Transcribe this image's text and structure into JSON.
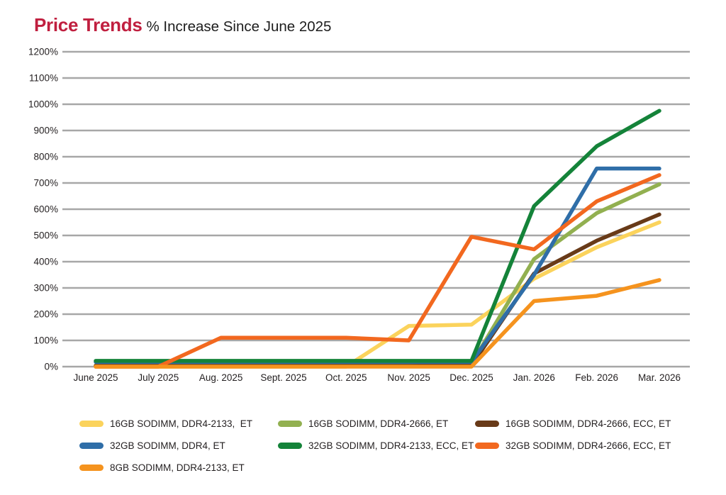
{
  "header": {
    "title": "Price Trends",
    "subtitle": "% Increase Since June 2025"
  },
  "colors": {
    "title_accent": "#C01F3F",
    "text": "#231F20",
    "gridline": "#A7A7A7"
  },
  "chart_data": {
    "type": "line",
    "title": "Price Trends",
    "subtitle": "% Increase Since June 2025",
    "xlabel": "",
    "ylabel": "",
    "ylim": [
      0,
      1200
    ],
    "grid": "horizontal",
    "legend_position": "bottom",
    "y_tick_suffix": "%",
    "y_ticks": [
      0,
      100,
      200,
      300,
      400,
      500,
      600,
      700,
      800,
      900,
      1000,
      1100,
      1200
    ],
    "x_categories": [
      "June 2025",
      "July 2025",
      "Aug. 2025",
      "Sept. 2025",
      "Oct. 2025",
      "Nov. 2025",
      "Dec. 2025",
      "Jan. 2026",
      "Feb. 2026",
      "Mar. 2026"
    ],
    "series": [
      {
        "name": "16GB SODIMM, DDR4-2133,  ET",
        "color": "#FBD35C",
        "values": [
          0,
          0,
          0,
          0,
          0,
          155,
          160,
          335,
          455,
          550
        ]
      },
      {
        "name": "16GB SODIMM, DDR4-2666, ET",
        "color": "#92B050",
        "values": [
          5,
          5,
          5,
          5,
          5,
          5,
          10,
          410,
          585,
          695
        ]
      },
      {
        "name": "16GB SODIMM, DDR4-2666, ECC, ET",
        "color": "#683A18",
        "values": [
          3,
          3,
          3,
          3,
          3,
          3,
          5,
          355,
          480,
          580
        ]
      },
      {
        "name": "32GB SODIMM, DDR4, ET",
        "color": "#2F6EA8",
        "values": [
          18,
          18,
          18,
          18,
          18,
          18,
          18,
          350,
          755,
          755
        ]
      },
      {
        "name": "32GB SODIMM, DDR4-2133, ECC, ET",
        "color": "#148339",
        "values": [
          22,
          22,
          22,
          22,
          22,
          22,
          22,
          612,
          840,
          975
        ]
      },
      {
        "name": "32GB SODIMM, DDR4-2666, ECC, ET",
        "color": "#F2681F",
        "values": [
          0,
          0,
          110,
          110,
          110,
          100,
          495,
          447,
          630,
          730
        ]
      },
      {
        "name": "8GB SODIMM, DDR4-2133, ET",
        "color": "#F5931E",
        "values": [
          0,
          0,
          0,
          0,
          0,
          0,
          0,
          250,
          270,
          330
        ]
      }
    ]
  }
}
